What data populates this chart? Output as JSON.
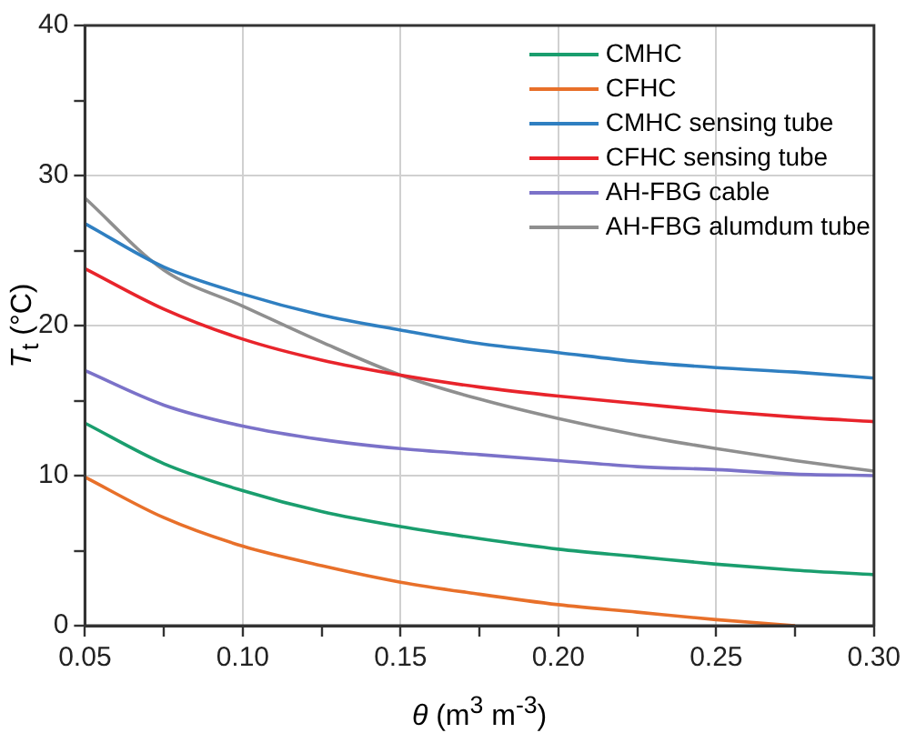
{
  "chart_data": {
    "type": "line",
    "xlabel": "θ (m$^{3}$ m$^{-3}$)",
    "ylabel": "T$_{t}$ (°C)",
    "x": [
      0.05,
      0.075,
      0.1,
      0.125,
      0.15,
      0.175,
      0.2,
      0.225,
      0.25,
      0.275,
      0.3
    ],
    "series": [
      {
        "name": "CMHC",
        "color": "#1a9e6e",
        "values": [
          13.5,
          10.8,
          9.0,
          7.6,
          6.6,
          5.8,
          5.1,
          4.6,
          4.1,
          3.7,
          3.4
        ]
      },
      {
        "name": "CFHC",
        "color": "#e8702a",
        "values": [
          9.9,
          7.2,
          5.3,
          4.0,
          2.9,
          2.1,
          1.4,
          0.9,
          0.4,
          0,
          null
        ]
      },
      {
        "name": "CMHC sensing tube",
        "color": "#2f7fc1",
        "values": [
          26.8,
          23.9,
          22.1,
          20.7,
          19.7,
          18.8,
          18.2,
          17.6,
          17.2,
          16.9,
          16.5
        ]
      },
      {
        "name": "CFHC sensing tube",
        "color": "#e8242b",
        "values": [
          23.8,
          21.1,
          19.1,
          17.7,
          16.7,
          15.9,
          15.3,
          14.8,
          14.3,
          13.9,
          13.6
        ]
      },
      {
        "name": "AH-FBG cable",
        "color": "#7b72c9",
        "values": [
          17.0,
          14.7,
          13.3,
          12.4,
          11.8,
          11.4,
          11.0,
          10.6,
          10.4,
          10.1,
          10.0
        ]
      },
      {
        "name": "AH-FBG alumdum tube",
        "color": "#8f8f8f",
        "values": [
          28.5,
          23.7,
          21.3,
          18.9,
          16.7,
          15.1,
          13.8,
          12.7,
          11.8,
          11.0,
          10.3
        ]
      }
    ],
    "xlim": [
      0.05,
      0.3
    ],
    "xticks": [
      {
        "value": 0.05,
        "label": "0.05"
      },
      {
        "value": 0.075,
        "label": null
      },
      {
        "value": 0.1,
        "label": "0.10"
      },
      {
        "value": 0.125,
        "label": null
      },
      {
        "value": 0.15,
        "label": "0.15"
      },
      {
        "value": 0.175,
        "label": null
      },
      {
        "value": 0.2,
        "label": "0.20"
      },
      {
        "value": 0.225,
        "label": null
      },
      {
        "value": 0.25,
        "label": "0.25"
      },
      {
        "value": 0.275,
        "label": null
      },
      {
        "value": 0.3,
        "label": "0.30"
      }
    ],
    "ylim": [
      0,
      40
    ],
    "yticks": [
      0,
      {
        "value": 5,
        "label": null
      },
      10,
      {
        "value": 15,
        "label": null
      },
      20,
      {
        "value": 25,
        "label": null
      },
      30,
      {
        "value": 35,
        "label": null
      },
      40
    ],
    "grid": true,
    "legend": "top right",
    "marker": "none",
    "line_style": "solid"
  }
}
